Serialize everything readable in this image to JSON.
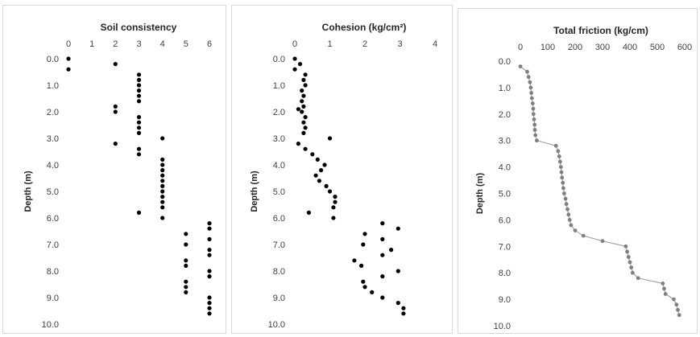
{
  "chart_data": [
    {
      "type": "scatter",
      "title": "Soil consistency",
      "xlabel": "",
      "ylabel": "Depth (m)",
      "xlim": [
        0,
        6
      ],
      "ylim": [
        0,
        10
      ],
      "y_reversed": true,
      "x_axis_position": "top",
      "grid": false,
      "x_ticks": [
        "0",
        "1",
        "2",
        "3",
        "4",
        "5",
        "6"
      ],
      "y_ticks": [
        "0.0",
        "1.0",
        "2.0",
        "3.0",
        "4.0",
        "5.0",
        "6.0",
        "7.0",
        "8.0",
        "9.0",
        "10.0"
      ],
      "marker_color": "#000000",
      "points": [
        [
          0,
          0.0
        ],
        [
          0,
          0.4
        ],
        [
          2,
          0.2
        ],
        [
          3,
          0.6
        ],
        [
          3,
          0.8
        ],
        [
          3,
          1.0
        ],
        [
          3,
          1.2
        ],
        [
          3,
          1.4
        ],
        [
          3,
          1.6
        ],
        [
          2,
          1.8
        ],
        [
          2,
          2.0
        ],
        [
          3,
          2.2
        ],
        [
          3,
          2.4
        ],
        [
          3,
          2.6
        ],
        [
          3,
          2.8
        ],
        [
          4,
          3.0
        ],
        [
          2,
          3.2
        ],
        [
          3,
          3.4
        ],
        [
          3,
          3.6
        ],
        [
          4,
          3.8
        ],
        [
          4,
          4.0
        ],
        [
          4,
          4.2
        ],
        [
          4,
          4.4
        ],
        [
          4,
          4.6
        ],
        [
          4,
          4.8
        ],
        [
          4,
          5.0
        ],
        [
          4,
          5.2
        ],
        [
          4,
          5.4
        ],
        [
          4,
          5.6
        ],
        [
          3,
          5.8
        ],
        [
          4,
          6.0
        ],
        [
          6,
          6.2
        ],
        [
          6,
          6.4
        ],
        [
          5,
          6.6
        ],
        [
          6,
          6.8
        ],
        [
          5,
          7.0
        ],
        [
          6,
          7.2
        ],
        [
          6,
          7.4
        ],
        [
          5,
          7.6
        ],
        [
          5,
          7.8
        ],
        [
          6,
          8.0
        ],
        [
          6,
          8.2
        ],
        [
          5,
          8.4
        ],
        [
          5,
          8.6
        ],
        [
          5,
          8.8
        ],
        [
          6,
          9.0
        ],
        [
          6,
          9.2
        ],
        [
          6,
          9.4
        ],
        [
          6,
          9.6
        ]
      ]
    },
    {
      "type": "scatter",
      "title": "Cohesion (kg/cm²)",
      "xlabel": "",
      "ylabel": "Depth (m)",
      "xlim": [
        0,
        4
      ],
      "ylim": [
        0,
        10
      ],
      "y_reversed": true,
      "x_axis_position": "top",
      "grid": false,
      "x_ticks": [
        "0",
        "1",
        "2",
        "3",
        "4"
      ],
      "y_ticks": [
        "0.0",
        "1.0",
        "2.0",
        "3.0",
        "4.0",
        "5.0",
        "6.0",
        "7.0",
        "8.0",
        "9.0",
        "10.0"
      ],
      "marker_color": "#000000",
      "points": [
        [
          0.0,
          0.0
        ],
        [
          0.15,
          0.2
        ],
        [
          0.0,
          0.4
        ],
        [
          0.3,
          0.6
        ],
        [
          0.25,
          0.8
        ],
        [
          0.3,
          1.0
        ],
        [
          0.2,
          1.2
        ],
        [
          0.25,
          1.4
        ],
        [
          0.2,
          1.6
        ],
        [
          0.25,
          1.8
        ],
        [
          0.1,
          1.9
        ],
        [
          0.2,
          2.0
        ],
        [
          0.3,
          2.2
        ],
        [
          0.25,
          2.4
        ],
        [
          0.3,
          2.6
        ],
        [
          0.25,
          2.8
        ],
        [
          1.0,
          3.0
        ],
        [
          0.1,
          3.2
        ],
        [
          0.3,
          3.4
        ],
        [
          0.5,
          3.6
        ],
        [
          0.65,
          3.8
        ],
        [
          0.85,
          4.0
        ],
        [
          0.75,
          4.2
        ],
        [
          0.6,
          4.4
        ],
        [
          0.7,
          4.6
        ],
        [
          0.9,
          4.8
        ],
        [
          1.0,
          5.0
        ],
        [
          1.15,
          5.2
        ],
        [
          1.15,
          5.4
        ],
        [
          1.1,
          5.6
        ],
        [
          0.4,
          5.8
        ],
        [
          1.1,
          6.0
        ],
        [
          2.5,
          6.2
        ],
        [
          2.95,
          6.4
        ],
        [
          2.0,
          6.6
        ],
        [
          2.5,
          6.8
        ],
        [
          1.95,
          7.0
        ],
        [
          2.75,
          7.2
        ],
        [
          2.5,
          7.4
        ],
        [
          1.7,
          7.6
        ],
        [
          1.9,
          7.8
        ],
        [
          2.95,
          8.0
        ],
        [
          2.5,
          8.2
        ],
        [
          1.95,
          8.4
        ],
        [
          2.0,
          8.6
        ],
        [
          2.2,
          8.8
        ],
        [
          2.5,
          9.0
        ],
        [
          2.95,
          9.2
        ],
        [
          3.1,
          9.4
        ],
        [
          3.1,
          9.6
        ]
      ]
    },
    {
      "type": "line",
      "title": "Total friction (kg/cm)",
      "xlabel": "",
      "ylabel": "Depth (m)",
      "xlim": [
        0,
        600
      ],
      "ylim": [
        0,
        10
      ],
      "y_reversed": true,
      "x_axis_position": "top",
      "grid": false,
      "x_ticks": [
        "0",
        "100",
        "200",
        "300",
        "400",
        "500",
        "600"
      ],
      "y_ticks": [
        "0.0",
        "1.0",
        "2.0",
        "3.0",
        "4.0",
        "5.0",
        "6.0",
        "7.0",
        "8.0",
        "9.0",
        "10.0"
      ],
      "line_color": "#a6a6a6",
      "marker_color": "#7f7f7f",
      "points": [
        [
          0,
          0.2
        ],
        [
          25,
          0.4
        ],
        [
          30,
          0.6
        ],
        [
          35,
          0.8
        ],
        [
          38,
          1.0
        ],
        [
          40,
          1.2
        ],
        [
          42,
          1.4
        ],
        [
          45,
          1.6
        ],
        [
          47,
          1.8
        ],
        [
          48,
          2.0
        ],
        [
          50,
          2.2
        ],
        [
          52,
          2.4
        ],
        [
          53,
          2.6
        ],
        [
          55,
          2.8
        ],
        [
          60,
          3.0
        ],
        [
          130,
          3.2
        ],
        [
          138,
          3.4
        ],
        [
          142,
          3.6
        ],
        [
          145,
          3.8
        ],
        [
          148,
          4.0
        ],
        [
          150,
          4.2
        ],
        [
          152,
          4.4
        ],
        [
          155,
          4.6
        ],
        [
          157,
          4.8
        ],
        [
          160,
          5.0
        ],
        [
          165,
          5.2
        ],
        [
          168,
          5.4
        ],
        [
          172,
          5.6
        ],
        [
          176,
          5.8
        ],
        [
          180,
          6.0
        ],
        [
          185,
          6.2
        ],
        [
          200,
          6.4
        ],
        [
          230,
          6.6
        ],
        [
          300,
          6.8
        ],
        [
          385,
          7.0
        ],
        [
          390,
          7.2
        ],
        [
          395,
          7.4
        ],
        [
          400,
          7.6
        ],
        [
          405,
          7.8
        ],
        [
          410,
          8.0
        ],
        [
          430,
          8.2
        ],
        [
          520,
          8.4
        ],
        [
          525,
          8.6
        ],
        [
          530,
          8.8
        ],
        [
          560,
          9.0
        ],
        [
          570,
          9.2
        ],
        [
          575,
          9.4
        ],
        [
          580,
          9.6
        ]
      ]
    }
  ]
}
